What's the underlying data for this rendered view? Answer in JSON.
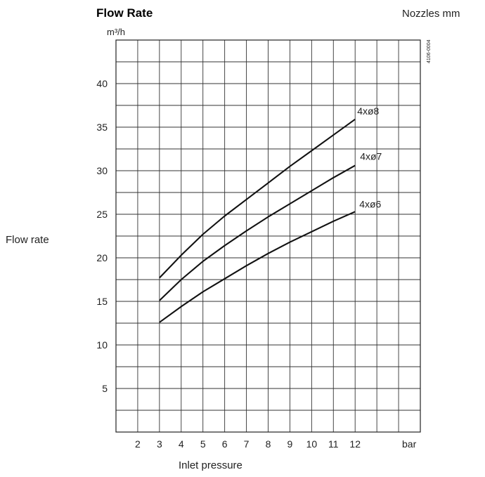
{
  "chart_data": {
    "type": "line",
    "title": "Flow Rate",
    "unit_label": "m³/h",
    "legend_title": "Nozzles mm",
    "figure_code": "4106-0004",
    "xlabel": "Inlet pressure",
    "ylabel": "Flow rate",
    "x_unit": "bar",
    "xlim": [
      1,
      15
    ],
    "ylim": [
      0,
      45
    ],
    "x_ticks": [
      2,
      3,
      4,
      5,
      6,
      7,
      8,
      9,
      10,
      11,
      12
    ],
    "y_ticks": [
      5,
      10,
      15,
      20,
      25,
      30,
      35,
      40
    ],
    "grid": true,
    "series": [
      {
        "name": "4xø8",
        "x": [
          3,
          4,
          5,
          6,
          7,
          8,
          9,
          10,
          11,
          12
        ],
        "values": [
          17.7,
          20.3,
          22.7,
          24.8,
          26.7,
          28.6,
          30.5,
          32.3,
          34.1,
          35.9
        ]
      },
      {
        "name": "4xø7",
        "x": [
          3,
          4,
          5,
          6,
          7,
          8,
          9,
          10,
          11,
          12
        ],
        "values": [
          15.1,
          17.5,
          19.6,
          21.4,
          23.1,
          24.7,
          26.2,
          27.7,
          29.2,
          30.6
        ]
      },
      {
        "name": "4xø6",
        "x": [
          3,
          4,
          5,
          6,
          7,
          8,
          9,
          10,
          11,
          12
        ],
        "values": [
          12.6,
          14.4,
          16.1,
          17.6,
          19.1,
          20.5,
          21.8,
          23.0,
          24.2,
          25.3
        ]
      }
    ]
  }
}
